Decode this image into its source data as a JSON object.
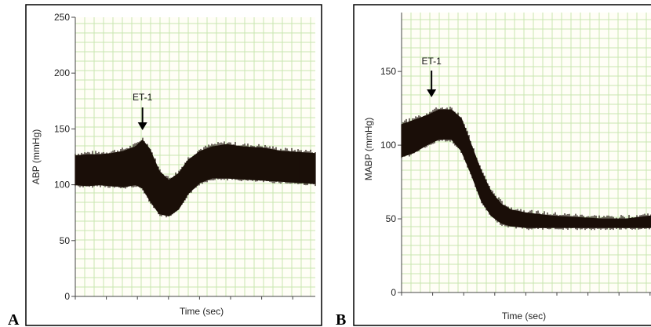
{
  "panel_letters": [
    "A",
    "B"
  ],
  "colors": {
    "grid": "#c8e6b0",
    "trace": "#1a0f08",
    "frame": "#000000",
    "paper": "#fffef6"
  },
  "chart_data": [
    {
      "type": "line",
      "panel": "A",
      "xlabel": "Time (sec)",
      "ylabel": "ABP (mmHg)",
      "ylim": [
        0,
        250
      ],
      "yticks": [
        "0",
        "50",
        "100",
        "150",
        "200",
        "250"
      ],
      "grid": true,
      "annotation": {
        "text": "ET-1",
        "x": 0.28
      },
      "series": [
        {
          "x": [
            0.0,
            0.05,
            0.1,
            0.15,
            0.2,
            0.25,
            0.28,
            0.31,
            0.35,
            0.39,
            0.43,
            0.47,
            0.52,
            0.57,
            0.63,
            0.7,
            0.78,
            0.86,
            0.93,
            1.0
          ],
          "y_upper": [
            126,
            127,
            127,
            128,
            130,
            134,
            140,
            132,
            112,
            104,
            110,
            122,
            130,
            134,
            136,
            134,
            133,
            130,
            129,
            128
          ],
          "y_lower": [
            100,
            99,
            100,
            99,
            98,
            100,
            97,
            86,
            74,
            72,
            78,
            92,
            102,
            106,
            106,
            105,
            104,
            103,
            102,
            101
          ]
        }
      ]
    },
    {
      "type": "line",
      "panel": "B",
      "xlabel": "Time (sec)",
      "ylabel": "MABP (mmHg)",
      "ylim": [
        0,
        190
      ],
      "yticks": [
        "0",
        "50",
        "100",
        "150"
      ],
      "grid": true,
      "annotation": {
        "text": "ET-1",
        "x": 0.12
      },
      "series": [
        {
          "x": [
            0.0,
            0.05,
            0.1,
            0.15,
            0.2,
            0.24,
            0.28,
            0.32,
            0.36,
            0.4,
            0.44,
            0.5,
            0.6,
            0.7,
            0.8,
            0.9,
            1.0
          ],
          "y_upper": [
            114,
            117,
            120,
            124,
            124,
            118,
            100,
            82,
            68,
            60,
            56,
            54,
            52,
            51,
            50,
            50,
            52
          ],
          "y_lower": [
            92,
            95,
            100,
            104,
            104,
            96,
            80,
            62,
            52,
            47,
            45,
            44,
            44,
            44,
            44,
            44,
            44
          ]
        }
      ]
    }
  ]
}
